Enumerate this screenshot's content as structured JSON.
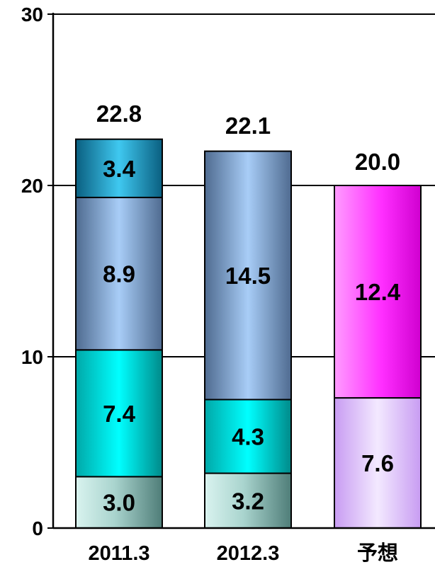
{
  "chart_data": {
    "type": "bar",
    "stacked": true,
    "categories": [
      "2011.3",
      "2012.3",
      "予想"
    ],
    "ylim": [
      0,
      30
    ],
    "yticks": [
      0,
      10,
      20,
      30
    ],
    "ytick_labels": [
      "0",
      "10",
      "20",
      "30"
    ],
    "grid": true,
    "legend": "none",
    "bars": [
      {
        "category": "2011.3",
        "total": 22.8,
        "total_label": "22.8",
        "segments": [
          {
            "value": 3.0,
            "label": "3.0",
            "color": "#6fa6a0"
          },
          {
            "value": 7.4,
            "label": "7.4",
            "color": "#00e5e5"
          },
          {
            "value": 8.9,
            "label": "8.9",
            "color": "#7fa4d4"
          },
          {
            "value": 3.4,
            "label": "3.4",
            "color": "#1f9ec8"
          }
        ]
      },
      {
        "category": "2012.3",
        "total": 22.1,
        "total_label": "22.1",
        "segments": [
          {
            "value": 3.2,
            "label": "3.2",
            "color": "#6fa6a0"
          },
          {
            "value": 4.3,
            "label": "4.3",
            "color": "#00e5e5"
          },
          {
            "value": 14.5,
            "label": "14.5",
            "color": "#7fa4d4"
          }
        ]
      },
      {
        "category": "予想",
        "total": 20.0,
        "total_label": "20.0",
        "segments": [
          {
            "value": 7.6,
            "label": "7.6",
            "color": "#d6b0f4"
          },
          {
            "value": 12.4,
            "label": "12.4",
            "color": "#f050f0"
          }
        ]
      }
    ]
  }
}
